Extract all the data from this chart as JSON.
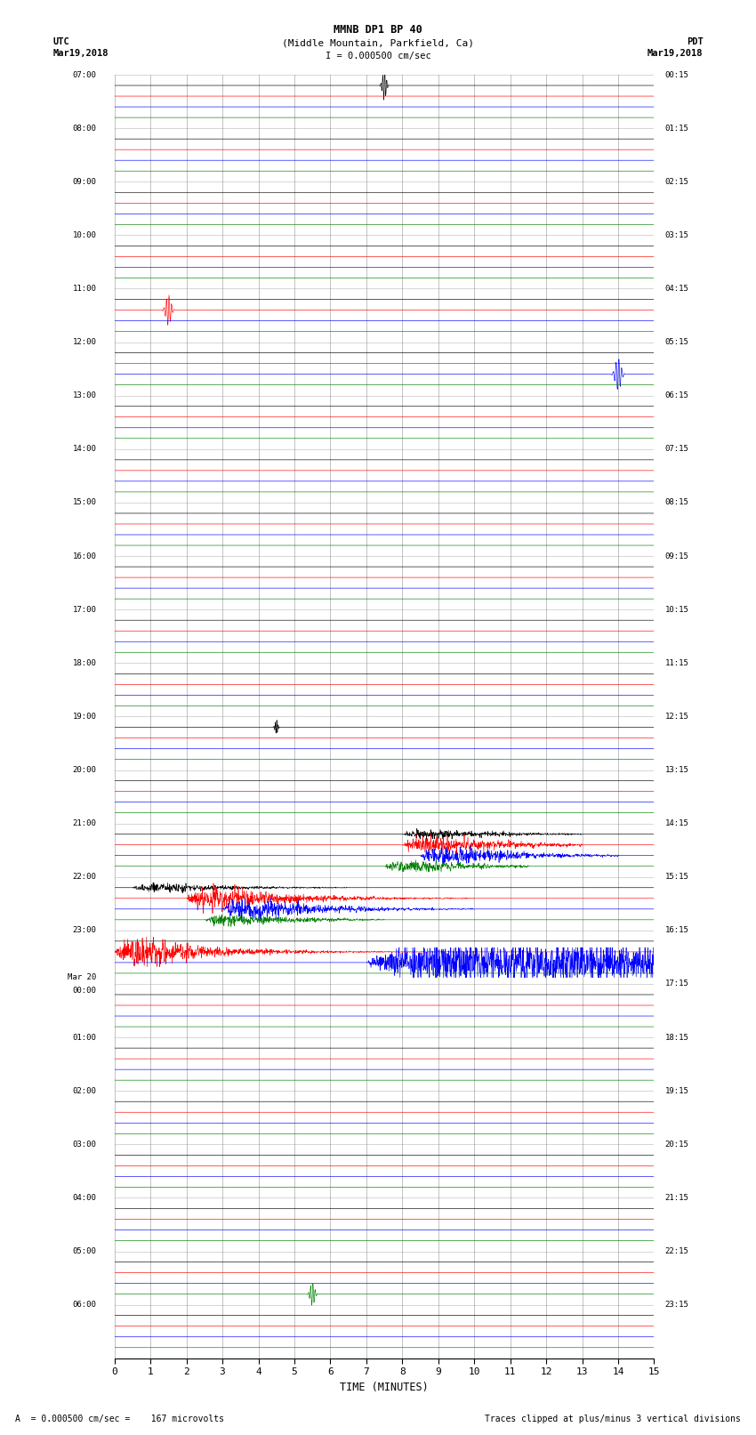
{
  "title_line1": "MMNB DP1 BP 40",
  "title_line2": "(Middle Mountain, Parkfield, Ca)",
  "scale_label": "I = 0.000500 cm/sec",
  "left_header_line1": "UTC",
  "left_header_line2": "Mar19,2018",
  "right_header_line1": "PDT",
  "right_header_line2": "Mar19,2018",
  "xlabel": "TIME (MINUTES)",
  "footer_left": "A  = 0.000500 cm/sec =    167 microvolts",
  "footer_right": "Traces clipped at plus/minus 3 vertical divisions",
  "left_times": [
    "07:00",
    "08:00",
    "09:00",
    "10:00",
    "11:00",
    "12:00",
    "13:00",
    "14:00",
    "15:00",
    "16:00",
    "17:00",
    "18:00",
    "19:00",
    "20:00",
    "21:00",
    "22:00",
    "23:00",
    "Mar 20\n00:00",
    "01:00",
    "02:00",
    "03:00",
    "04:00",
    "05:00",
    "06:00"
  ],
  "right_times": [
    "00:15",
    "01:15",
    "02:15",
    "03:15",
    "04:15",
    "05:15",
    "06:15",
    "07:15",
    "08:15",
    "09:15",
    "10:15",
    "11:15",
    "12:15",
    "13:15",
    "14:15",
    "15:15",
    "16:15",
    "17:15",
    "18:15",
    "19:15",
    "20:15",
    "21:15",
    "22:15",
    "23:15"
  ],
  "num_rows": 24,
  "num_traces_per_row": 4,
  "colors": [
    "black",
    "red",
    "blue",
    "green"
  ],
  "bg_color": "#ffffff",
  "grid_color": "#aaaaaa",
  "xlim": [
    0,
    15
  ],
  "minutes_ticks": [
    0,
    1,
    2,
    3,
    4,
    5,
    6,
    7,
    8,
    9,
    10,
    11,
    12,
    13,
    14,
    15
  ],
  "figwidth": 8.5,
  "figheight": 16.13
}
